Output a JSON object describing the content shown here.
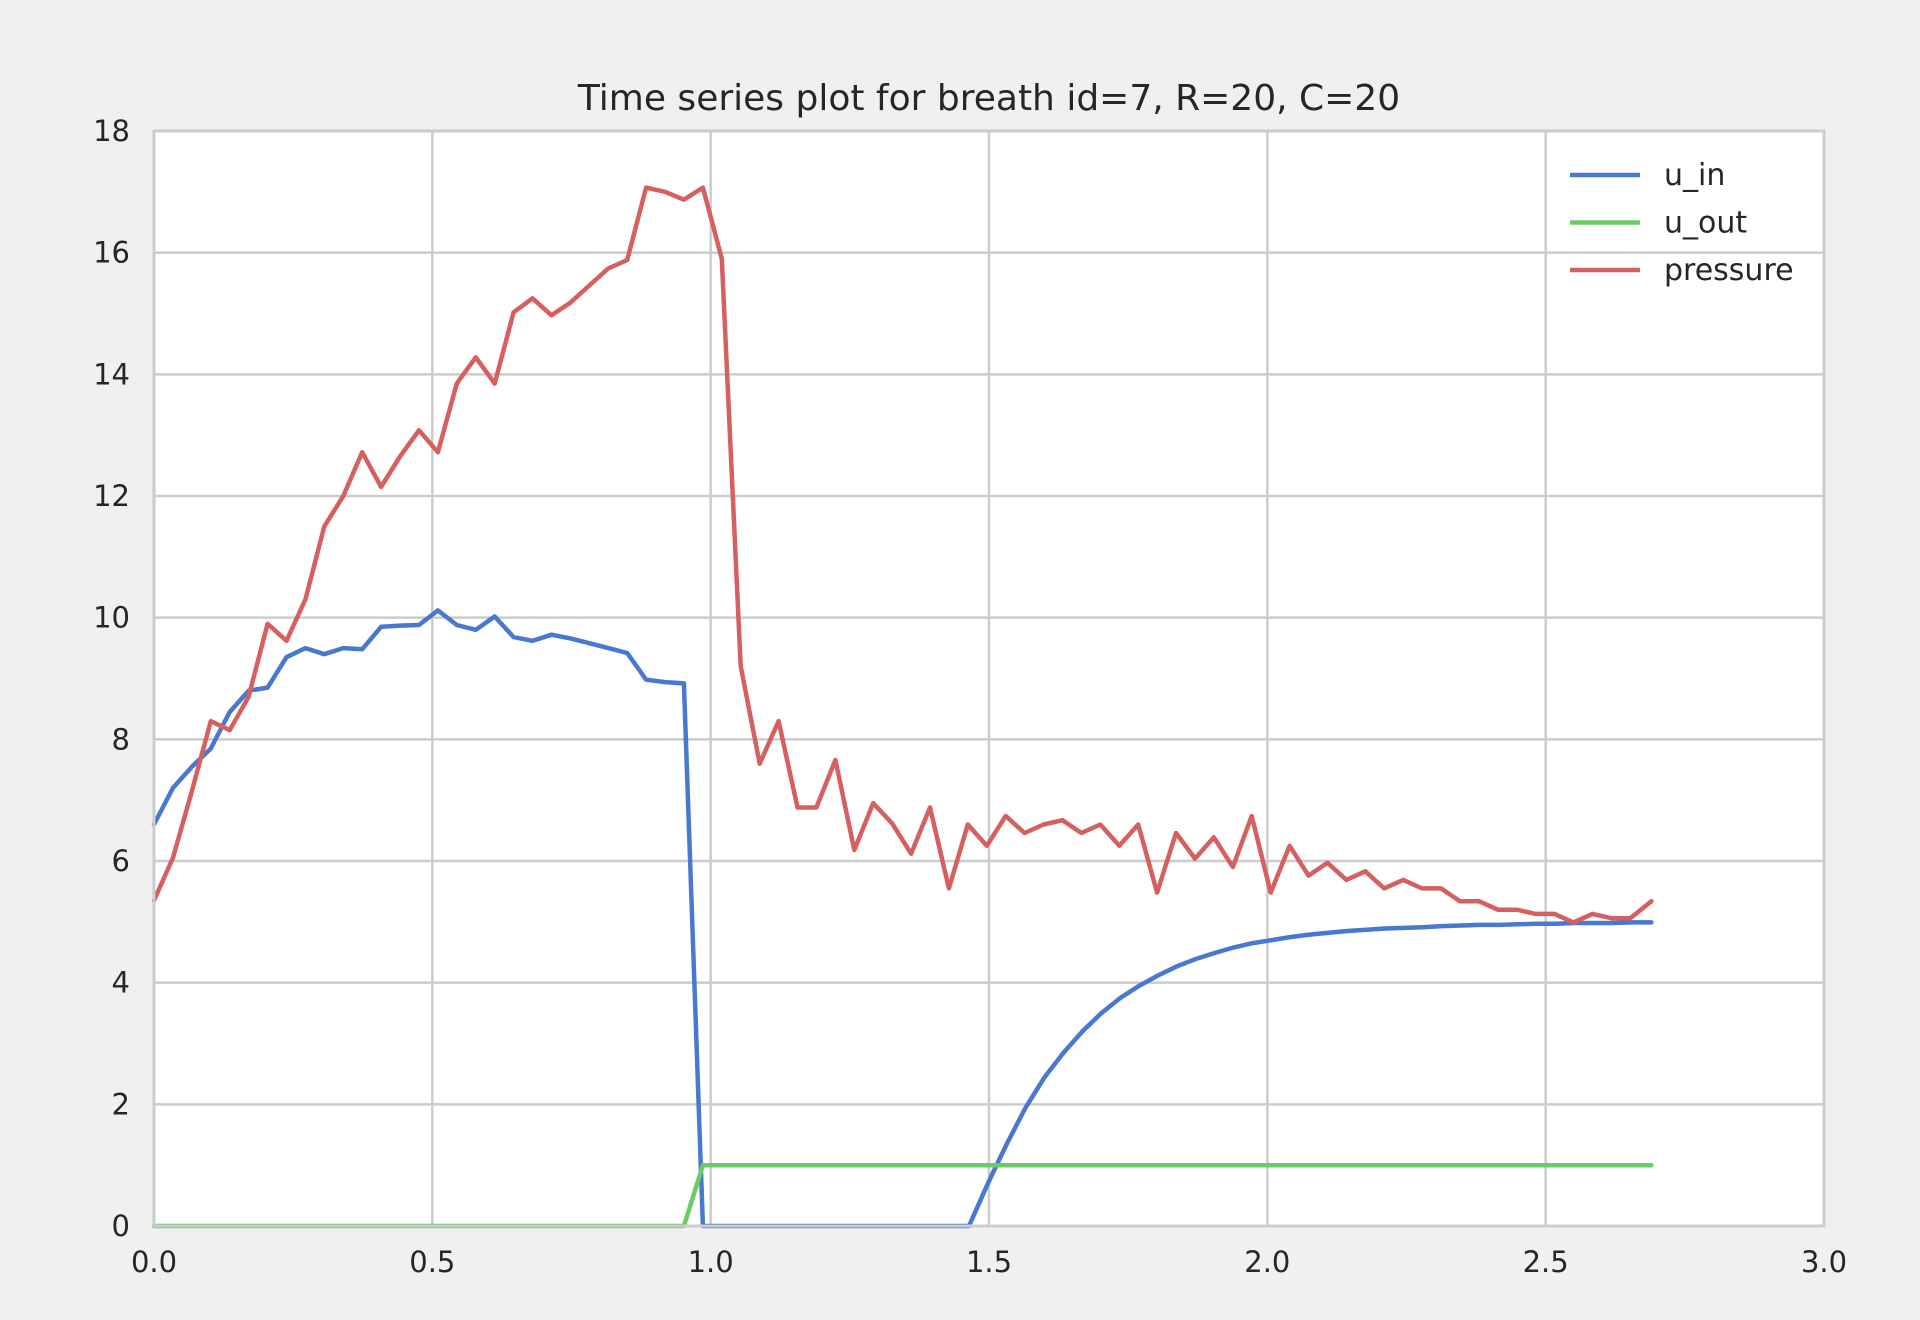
{
  "chart_data": {
    "type": "line",
    "title": "Time series plot for breath id=7, R=20, C=20",
    "xlabel": "",
    "ylabel": "",
    "xlim": [
      0,
      3
    ],
    "ylim": [
      0,
      18
    ],
    "xticks": [
      0,
      0.5,
      1,
      1.5,
      2,
      2.5,
      3
    ],
    "xtick_labels": [
      "0.0",
      "0.5",
      "1.0",
      "1.5",
      "2.0",
      "2.5",
      "3.0"
    ],
    "yticks": [
      0,
      2,
      4,
      6,
      8,
      10,
      12,
      14,
      16,
      18
    ],
    "ytick_labels": [
      "0",
      "2",
      "4",
      "6",
      "8",
      "10",
      "12",
      "14",
      "16",
      "18"
    ],
    "grid": true,
    "legend_position": "top-right",
    "background_color": "#ffffff",
    "figure_color": "#f0f0f0",
    "series": [
      {
        "name": "u_in",
        "color": "#4878cf",
        "points": [
          [
            0.0,
            6.6
          ],
          [
            0.034,
            7.2
          ],
          [
            0.068,
            7.55
          ],
          [
            0.102,
            7.85
          ],
          [
            0.136,
            8.45
          ],
          [
            0.17,
            8.8
          ],
          [
            0.204,
            8.85
          ],
          [
            0.238,
            9.35
          ],
          [
            0.272,
            9.5
          ],
          [
            0.306,
            9.4
          ],
          [
            0.34,
            9.5
          ],
          [
            0.374,
            9.48
          ],
          [
            0.408,
            9.85
          ],
          [
            0.442,
            9.87
          ],
          [
            0.476,
            9.88
          ],
          [
            0.51,
            10.12
          ],
          [
            0.544,
            9.88
          ],
          [
            0.578,
            9.8
          ],
          [
            0.612,
            10.02
          ],
          [
            0.646,
            9.68
          ],
          [
            0.68,
            9.62
          ],
          [
            0.714,
            9.72
          ],
          [
            0.748,
            9.66
          ],
          [
            0.782,
            9.58
          ],
          [
            0.816,
            9.5
          ],
          [
            0.85,
            9.42
          ],
          [
            0.884,
            8.98
          ],
          [
            0.918,
            8.94
          ],
          [
            0.952,
            8.92
          ],
          [
            0.986,
            0.0
          ],
          [
            1.02,
            0.0
          ],
          [
            1.1,
            0.0
          ],
          [
            1.2,
            0.0
          ],
          [
            1.3,
            0.0
          ],
          [
            1.4,
            0.0
          ],
          [
            1.464,
            0.0
          ],
          [
            1.498,
            0.7
          ],
          [
            1.532,
            1.35
          ],
          [
            1.566,
            1.95
          ],
          [
            1.6,
            2.45
          ],
          [
            1.634,
            2.85
          ],
          [
            1.668,
            3.2
          ],
          [
            1.702,
            3.5
          ],
          [
            1.736,
            3.75
          ],
          [
            1.77,
            3.95
          ],
          [
            1.804,
            4.12
          ],
          [
            1.838,
            4.27
          ],
          [
            1.872,
            4.39
          ],
          [
            1.906,
            4.49
          ],
          [
            1.94,
            4.58
          ],
          [
            1.974,
            4.65
          ],
          [
            2.008,
            4.7
          ],
          [
            2.042,
            4.75
          ],
          [
            2.076,
            4.79
          ],
          [
            2.11,
            4.82
          ],
          [
            2.144,
            4.85
          ],
          [
            2.178,
            4.87
          ],
          [
            2.212,
            4.89
          ],
          [
            2.246,
            4.9
          ],
          [
            2.28,
            4.91
          ],
          [
            2.314,
            4.93
          ],
          [
            2.348,
            4.94
          ],
          [
            2.382,
            4.95
          ],
          [
            2.416,
            4.95
          ],
          [
            2.45,
            4.96
          ],
          [
            2.484,
            4.97
          ],
          [
            2.518,
            4.97
          ],
          [
            2.552,
            4.98
          ],
          [
            2.586,
            4.98
          ],
          [
            2.62,
            4.98
          ],
          [
            2.654,
            4.99
          ],
          [
            2.69,
            4.99
          ]
        ]
      },
      {
        "name": "u_out",
        "color": "#6acc65",
        "points": [
          [
            0.0,
            0
          ],
          [
            0.952,
            0
          ],
          [
            0.986,
            1
          ],
          [
            1.02,
            1
          ],
          [
            1.5,
            1
          ],
          [
            2.0,
            1
          ],
          [
            2.69,
            1
          ]
        ]
      },
      {
        "name": "pressure",
        "color": "#d65f5f",
        "points": [
          [
            0.0,
            5.35
          ],
          [
            0.034,
            6.05
          ],
          [
            0.068,
            7.15
          ],
          [
            0.102,
            8.3
          ],
          [
            0.136,
            8.15
          ],
          [
            0.17,
            8.7
          ],
          [
            0.204,
            9.9
          ],
          [
            0.238,
            9.62
          ],
          [
            0.272,
            10.3
          ],
          [
            0.306,
            11.5
          ],
          [
            0.34,
            12.0
          ],
          [
            0.374,
            12.72
          ],
          [
            0.408,
            12.15
          ],
          [
            0.442,
            12.65
          ],
          [
            0.476,
            13.08
          ],
          [
            0.51,
            12.72
          ],
          [
            0.544,
            13.85
          ],
          [
            0.578,
            14.28
          ],
          [
            0.612,
            13.85
          ],
          [
            0.646,
            15.02
          ],
          [
            0.68,
            15.25
          ],
          [
            0.714,
            14.97
          ],
          [
            0.748,
            15.18
          ],
          [
            0.782,
            15.46
          ],
          [
            0.816,
            15.74
          ],
          [
            0.85,
            15.88
          ],
          [
            0.884,
            17.07
          ],
          [
            0.918,
            17.0
          ],
          [
            0.952,
            16.87
          ],
          [
            0.986,
            17.07
          ],
          [
            1.02,
            15.9
          ],
          [
            1.054,
            9.2
          ],
          [
            1.088,
            7.6
          ],
          [
            1.122,
            8.3
          ],
          [
            1.156,
            6.88
          ],
          [
            1.19,
            6.88
          ],
          [
            1.224,
            7.66
          ],
          [
            1.258,
            6.18
          ],
          [
            1.292,
            6.95
          ],
          [
            1.326,
            6.62
          ],
          [
            1.36,
            6.12
          ],
          [
            1.394,
            6.88
          ],
          [
            1.428,
            5.55
          ],
          [
            1.462,
            6.6
          ],
          [
            1.496,
            6.25
          ],
          [
            1.53,
            6.74
          ],
          [
            1.564,
            6.46
          ],
          [
            1.598,
            6.6
          ],
          [
            1.632,
            6.67
          ],
          [
            1.666,
            6.46
          ],
          [
            1.7,
            6.6
          ],
          [
            1.734,
            6.25
          ],
          [
            1.768,
            6.6
          ],
          [
            1.802,
            5.48
          ],
          [
            1.836,
            6.46
          ],
          [
            1.87,
            6.04
          ],
          [
            1.904,
            6.39
          ],
          [
            1.938,
            5.9
          ],
          [
            1.972,
            6.74
          ],
          [
            2.006,
            5.48
          ],
          [
            2.04,
            6.25
          ],
          [
            2.074,
            5.76
          ],
          [
            2.108,
            5.97
          ],
          [
            2.142,
            5.69
          ],
          [
            2.176,
            5.83
          ],
          [
            2.21,
            5.55
          ],
          [
            2.244,
            5.69
          ],
          [
            2.278,
            5.55
          ],
          [
            2.312,
            5.55
          ],
          [
            2.346,
            5.34
          ],
          [
            2.38,
            5.34
          ],
          [
            2.414,
            5.2
          ],
          [
            2.448,
            5.2
          ],
          [
            2.482,
            5.13
          ],
          [
            2.516,
            5.13
          ],
          [
            2.55,
            4.99
          ],
          [
            2.584,
            5.13
          ],
          [
            2.618,
            5.06
          ],
          [
            2.652,
            5.06
          ],
          [
            2.69,
            5.34
          ]
        ]
      }
    ]
  }
}
